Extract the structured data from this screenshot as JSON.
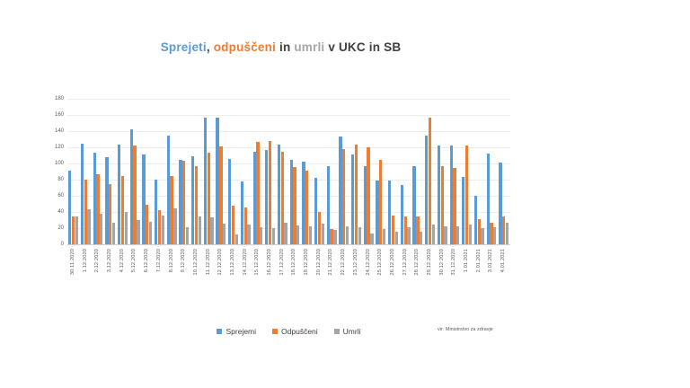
{
  "title": {
    "parts": [
      {
        "text": "Sprejeti",
        "color": "#5B9BD5"
      },
      {
        "text": ", ",
        "color": "#404040"
      },
      {
        "text": "odpuščeni",
        "color": "#ED7D31"
      },
      {
        "text": " in ",
        "color": "#404040"
      },
      {
        "text": "umrli",
        "color": "#A6A6A6"
      },
      {
        "text": " v UKC in SB",
        "color": "#404040"
      }
    ]
  },
  "source_note": "vir: Ministrstvo za zdravje",
  "chart_data": {
    "type": "bar",
    "title": "Sprejeti, odpuščeni in umrli v UKC in SB",
    "xlabel": "",
    "ylabel": "",
    "ylim": [
      0,
      180
    ],
    "ytick_step": 20,
    "grid": true,
    "legend_position": "bottom",
    "categories": [
      "30.11.2020",
      "1.12.2020",
      "2.12.2020",
      "3.12.2020",
      "4.12.2020",
      "5.12.2020",
      "6.12.2020",
      "7.12.2020",
      "8.12.2020",
      "9.12.2020",
      "10.12.2020",
      "11.12.2020",
      "12.12.2020",
      "13.12.2020",
      "14.12.2020",
      "15.12.2020",
      "16.12.2020",
      "17.12.2020",
      "18.12.2020",
      "19.12.2020",
      "20.12.2020",
      "21.12.2020",
      "22.12.2020",
      "23.12.2020",
      "24.12.2020",
      "25.12.2020",
      "26.12.2020",
      "27.12.2020",
      "28.12.2020",
      "29.12.2020",
      "30.12.2020",
      "31.12.2020",
      "1.01.2021",
      "2.01.2021",
      "3.01.2021",
      "4.01.2021"
    ],
    "series": [
      {
        "name": "Sprejemi",
        "color": "#5B9BD5",
        "values": [
          91,
          125,
          113,
          108,
          123,
          142,
          111,
          80,
          135,
          104,
          109,
          157,
          157,
          106,
          78,
          114,
          117,
          123,
          104,
          102,
          82,
          97,
          133,
          111,
          97,
          79,
          79,
          73,
          97,
          134,
          122,
          122,
          83,
          60,
          112,
          101
        ]
      },
      {
        "name": "Odpuščeni",
        "color": "#ED7D31",
        "values": [
          35,
          80,
          87,
          75,
          84,
          122,
          49,
          42,
          84,
          103,
          97,
          113,
          121,
          48,
          46,
          127,
          128,
          114,
          96,
          91,
          40,
          19,
          118,
          123,
          120,
          104,
          36,
          35,
          34,
          157,
          97,
          95,
          122,
          31,
          27,
          35
        ]
      },
      {
        "name": "Umrli",
        "color": "#A5A5A5",
        "values": [
          35,
          43,
          38,
          27,
          40,
          30,
          28,
          36,
          45,
          21,
          35,
          33,
          26,
          12,
          25,
          21,
          20,
          27,
          23,
          22,
          26,
          18,
          22,
          21,
          13,
          19,
          16,
          21,
          16,
          25,
          22,
          22,
          24,
          20,
          21,
          27
        ]
      }
    ]
  }
}
